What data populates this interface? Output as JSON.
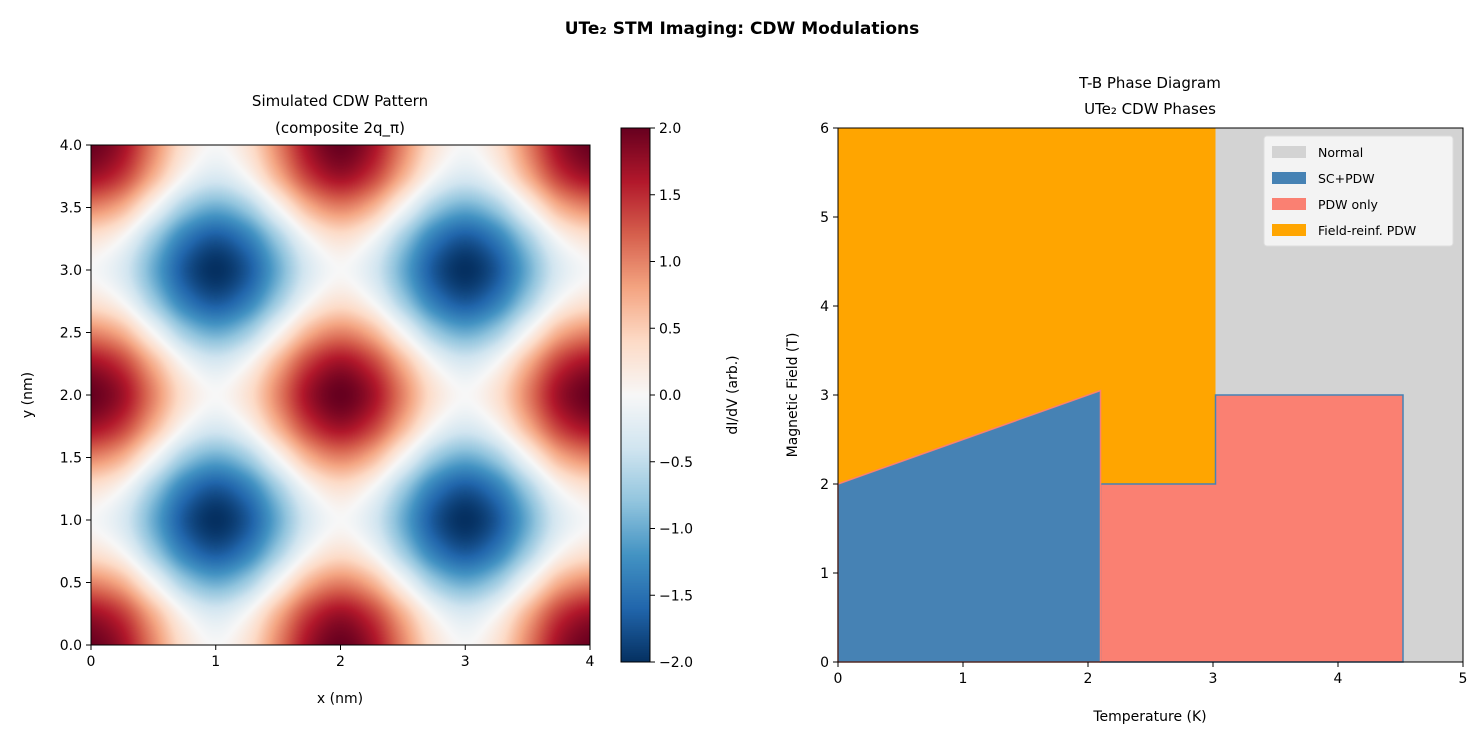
{
  "suptitle": "UTe₂ STM Imaging: CDW Modulations",
  "chart_data": [
    {
      "type": "heatmap",
      "title": "Simulated CDW Pattern\n(composite 2q_π)",
      "title_lines": [
        "Simulated CDW Pattern",
        "(composite 2q_π)"
      ],
      "xlabel": "x (nm)",
      "ylabel": "y (nm)",
      "xlim": [
        0,
        4
      ],
      "ylim": [
        0,
        4
      ],
      "xticks": [
        "0",
        "1",
        "2",
        "3",
        "4"
      ],
      "yticks": [
        "0.0",
        "0.5",
        "1.0",
        "1.5",
        "2.0",
        "2.5",
        "3.0",
        "3.5",
        "4.0"
      ],
      "colormap": "RdBu_r",
      "colormap_stops": [
        "#053061",
        "#2166ac",
        "#4393c3",
        "#92c5de",
        "#d1e5f0",
        "#f7f7f7",
        "#fddbc7",
        "#f4a582",
        "#d6604d",
        "#b2182b",
        "#67001f"
      ],
      "colorbar": {
        "label": "dI/dV (arb.)",
        "range": [
          -2,
          2
        ],
        "ticks": [
          "−2.0",
          "−1.5",
          "−1.0",
          "−0.5",
          "0.0",
          "0.5",
          "1.0",
          "1.5",
          "2.0"
        ]
      },
      "grid_x": [
        0,
        0.25,
        0.5,
        0.75,
        1,
        1.25,
        1.5,
        1.75,
        2,
        2.25,
        2.5,
        2.75,
        3,
        3.25,
        3.5,
        3.75,
        4
      ],
      "grid_y": [
        0,
        0.25,
        0.5,
        0.75,
        1,
        1.25,
        1.5,
        1.75,
        2,
        2.25,
        2.5,
        2.75,
        3,
        3.25,
        3.5,
        3.75,
        4
      ],
      "z": [
        [
          2,
          1.71,
          1,
          0.29,
          0,
          0.29,
          1,
          1.71,
          2,
          1.71,
          1,
          0.29,
          0,
          0.29,
          1,
          1.71,
          2
        ],
        [
          1.71,
          1.41,
          0.71,
          0,
          -0.29,
          0,
          0.71,
          1.41,
          1.71,
          1.41,
          0.71,
          0,
          -0.29,
          0,
          0.71,
          1.41,
          1.71
        ],
        [
          1,
          0.71,
          0,
          -0.71,
          -1,
          -0.71,
          0,
          0.71,
          1,
          0.71,
          0,
          -0.71,
          -1,
          -0.71,
          0,
          0.71,
          1
        ],
        [
          0.29,
          0,
          -0.71,
          -1.41,
          -1.71,
          -1.41,
          -0.71,
          0,
          0.29,
          0,
          -0.71,
          -1.41,
          -1.71,
          -1.41,
          -0.71,
          0,
          0.29
        ],
        [
          0,
          -0.29,
          -1,
          -1.71,
          -2,
          -1.71,
          -1,
          -0.29,
          0,
          -0.29,
          -1,
          -1.71,
          -2,
          -1.71,
          -1,
          -0.29,
          0
        ],
        [
          0.29,
          0,
          -0.71,
          -1.41,
          -1.71,
          -1.41,
          -0.71,
          0,
          0.29,
          0,
          -0.71,
          -1.41,
          -1.71,
          -1.41,
          -0.71,
          0,
          0.29
        ],
        [
          1,
          0.71,
          0,
          -0.71,
          -1,
          -0.71,
          0,
          0.71,
          1,
          0.71,
          0,
          -0.71,
          -1,
          -0.71,
          0,
          0.71,
          1
        ],
        [
          1.71,
          1.41,
          0.71,
          0,
          -0.29,
          0,
          0.71,
          1.41,
          1.71,
          1.41,
          0.71,
          0,
          -0.29,
          0,
          0.71,
          1.41,
          1.71
        ],
        [
          2,
          1.71,
          1,
          0.29,
          0,
          0.29,
          1,
          1.71,
          2,
          1.71,
          1,
          0.29,
          0,
          0.29,
          1,
          1.71,
          2
        ],
        [
          1.71,
          1.41,
          0.71,
          0,
          -0.29,
          0,
          0.71,
          1.41,
          1.71,
          1.41,
          0.71,
          0,
          -0.29,
          0,
          0.71,
          1.41,
          1.71
        ],
        [
          1,
          0.71,
          0,
          -0.71,
          -1,
          -0.71,
          0,
          0.71,
          1,
          0.71,
          0,
          -0.71,
          -1,
          -0.71,
          0,
          0.71,
          1
        ],
        [
          0.29,
          0,
          -0.71,
          -1.41,
          -1.71,
          -1.41,
          -0.71,
          0,
          0.29,
          0,
          -0.71,
          -1.41,
          -1.71,
          -1.41,
          -0.71,
          0,
          0.29
        ],
        [
          0,
          -0.29,
          -1,
          -1.71,
          -2,
          -1.71,
          -1,
          -0.29,
          0,
          -0.29,
          -1,
          -1.71,
          -2,
          -1.71,
          -1,
          -0.29,
          0
        ],
        [
          0.29,
          0,
          -0.71,
          -1.41,
          -1.71,
          -1.41,
          -0.71,
          0,
          0.29,
          0,
          -0.71,
          -1.41,
          -1.71,
          -1.41,
          -0.71,
          0,
          0.29
        ],
        [
          1,
          0.71,
          0,
          -0.71,
          -1,
          -0.71,
          0,
          0.71,
          1,
          0.71,
          0,
          -0.71,
          -1,
          -0.71,
          0,
          0.71,
          1
        ],
        [
          1.71,
          1.41,
          0.71,
          0,
          -0.29,
          0,
          0.71,
          1.41,
          1.71,
          1.41,
          0.71,
          0,
          -0.29,
          0,
          0.71,
          1.41,
          1.71
        ],
        [
          2,
          1.71,
          1,
          0.29,
          0,
          0.29,
          1,
          1.71,
          2,
          1.71,
          1,
          0.29,
          0,
          0.29,
          1,
          1.71,
          2
        ]
      ]
    },
    {
      "type": "area",
      "title_lines": [
        "T-B Phase Diagram",
        "UTe₂ CDW Phases"
      ],
      "xlabel": "Temperature (K)",
      "ylabel": "Magnetic Field (T)",
      "xlim": [
        0,
        5
      ],
      "ylim": [
        0,
        6
      ],
      "xticks": [
        "0",
        "1",
        "2",
        "3",
        "4",
        "5"
      ],
      "yticks": [
        "0",
        "1",
        "2",
        "3",
        "4",
        "5",
        "6"
      ],
      "legend_position": "top-right",
      "regions": [
        {
          "name": "Normal",
          "color": "#d3d3d3",
          "polygon": [
            [
              0,
              0
            ],
            [
              5,
              0
            ],
            [
              5,
              6
            ],
            [
              0,
              6
            ]
          ]
        },
        {
          "name": "Field-reinf. PDW",
          "color": "#ffa500",
          "polygon": [
            [
              0,
              2
            ],
            [
              0,
              6
            ],
            [
              3.02,
              6
            ],
            [
              3.02,
              2
            ],
            [
              2.1,
              2
            ],
            [
              2.1,
              3.05
            ]
          ]
        },
        {
          "name": "PDW only",
          "color": "#fa8072",
          "polygon": [
            [
              2.1,
              0
            ],
            [
              4.52,
              0
            ],
            [
              4.52,
              3
            ],
            [
              3.02,
              3
            ],
            [
              3.02,
              2
            ],
            [
              2.1,
              2
            ]
          ]
        },
        {
          "name": "SC+PDW",
          "color": "#4682b4",
          "polygon": [
            [
              0,
              0
            ],
            [
              2.1,
              0
            ],
            [
              2.1,
              3.05
            ],
            [
              0,
              2
            ]
          ]
        }
      ],
      "legend": [
        "Normal",
        "SC+PDW",
        "PDW only",
        "Field-reinf. PDW"
      ]
    }
  ]
}
